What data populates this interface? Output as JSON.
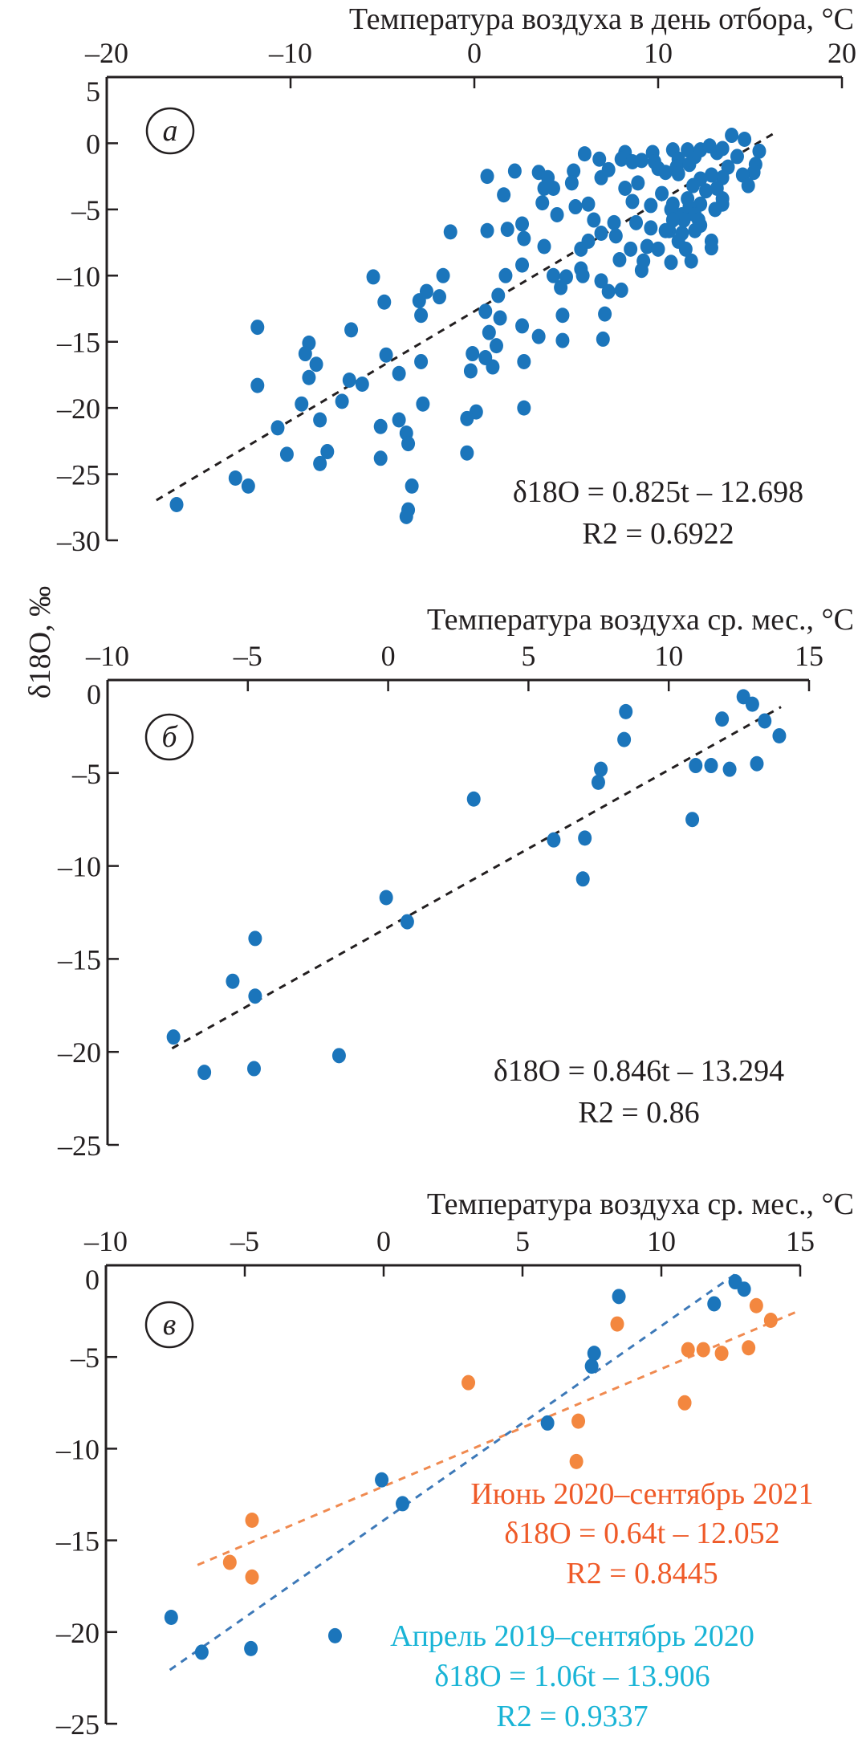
{
  "y_axis_label": "δ18O, ‰",
  "colors": {
    "blue": "#1b75bb",
    "orange": "#f3873f",
    "orange_text": "#ef5a28",
    "cyan_text": "#19b4d6",
    "blue_line": "#3d79b8",
    "orange_line": "#f08a50",
    "black": "#231f20"
  },
  "chart_data": [
    {
      "type": "scatter",
      "panel_label": "а",
      "xlabel": "Температура воздуха в день отбора, °C",
      "ylabel": "δ18O, ‰",
      "xlim": [
        -20,
        20
      ],
      "ylim": [
        -30,
        5
      ],
      "xticks": [
        -20,
        -10,
        0,
        10,
        20
      ],
      "yticks": [
        5,
        0,
        -5,
        -10,
        -15,
        -20,
        -25,
        -30
      ],
      "x_axis_position": "top",
      "grid": false,
      "series": [
        {
          "color": "#1b75bb",
          "points": [
            [
              -11.8,
              -13.9
            ],
            [
              -11.8,
              -18.3
            ],
            [
              -9.0,
              -15.1
            ],
            [
              -9.2,
              -15.9
            ],
            [
              -8.6,
              -16.7
            ],
            [
              -9.0,
              -17.7
            ],
            [
              -9.4,
              -19.7
            ],
            [
              -6.7,
              -14.1
            ],
            [
              -6.8,
              -17.9
            ],
            [
              -6.1,
              -18.2
            ],
            [
              -7.2,
              -19.5
            ],
            [
              -4.8,
              -16.0
            ],
            [
              -4.1,
              -17.4
            ],
            [
              -2.9,
              -16.5
            ],
            [
              -2.8,
              -19.7
            ],
            [
              -5.5,
              -10.1
            ],
            [
              -4.9,
              -12.0
            ],
            [
              -3.0,
              -11.9
            ],
            [
              -2.6,
              -11.2
            ],
            [
              -1.9,
              -11.6
            ],
            [
              -2.9,
              -13.0
            ],
            [
              -1.7,
              -10.0
            ],
            [
              -1.3,
              -6.7
            ],
            [
              -0.2,
              -17.2
            ],
            [
              -0.1,
              -15.9
            ],
            [
              0.6,
              -16.2
            ],
            [
              1.0,
              -16.9
            ],
            [
              0.8,
              -14.3
            ],
            [
              1.2,
              -15.3
            ],
            [
              0.6,
              -12.7
            ],
            [
              1.4,
              -13.2
            ],
            [
              1.3,
              -11.5
            ],
            [
              1.7,
              -10.0
            ],
            [
              2.6,
              -9.2
            ],
            [
              2.6,
              -13.8
            ],
            [
              2.7,
              -16.5
            ],
            [
              2.7,
              -20.0
            ],
            [
              0.1,
              -20.3
            ],
            [
              3.5,
              -14.6
            ],
            [
              4.8,
              -14.9
            ],
            [
              4.8,
              -13.0
            ],
            [
              7.0,
              -14.8
            ],
            [
              7.1,
              -12.9
            ],
            [
              4.3,
              -10.0
            ],
            [
              5.0,
              -10.1
            ],
            [
              4.7,
              -10.9
            ],
            [
              5.8,
              -9.5
            ],
            [
              5.9,
              -10.0
            ],
            [
              6.9,
              -10.4
            ],
            [
              7.3,
              -11.2
            ],
            [
              8.0,
              -11.1
            ],
            [
              3.8,
              -7.8
            ],
            [
              2.7,
              -7.2
            ],
            [
              2.6,
              -6.1
            ],
            [
              1.8,
              -6.5
            ],
            [
              0.7,
              -6.6
            ],
            [
              1.6,
              -3.9
            ],
            [
              0.7,
              -2.5
            ],
            [
              2.2,
              -2.1
            ],
            [
              3.5,
              -2.2
            ],
            [
              4.0,
              -2.6
            ],
            [
              3.8,
              -3.4
            ],
            [
              4.3,
              -3.4
            ],
            [
              3.7,
              -4.5
            ],
            [
              4.5,
              -5.4
            ],
            [
              5.4,
              -2.1
            ],
            [
              5.3,
              -3.0
            ],
            [
              5.5,
              -4.8
            ],
            [
              6.2,
              -4.6
            ],
            [
              6.0,
              -0.8
            ],
            [
              6.8,
              -1.2
            ],
            [
              7.3,
              -2.0
            ],
            [
              6.9,
              -2.6
            ],
            [
              8.2,
              -3.4
            ],
            [
              8.9,
              -3.0
            ],
            [
              8.6,
              -4.4
            ],
            [
              9.6,
              -4.7
            ],
            [
              6.5,
              -5.8
            ],
            [
              6.9,
              -6.8
            ],
            [
              7.6,
              -6.0
            ],
            [
              7.7,
              -7.0
            ],
            [
              5.8,
              -8.0
            ],
            [
              6.2,
              -7.4
            ],
            [
              8.5,
              -8.0
            ],
            [
              7.9,
              -8.8
            ],
            [
              9.4,
              -7.8
            ],
            [
              10.0,
              -8.0
            ],
            [
              9.2,
              -8.9
            ],
            [
              9.1,
              -9.6
            ],
            [
              10.7,
              -9.0
            ],
            [
              11.8,
              -8.9
            ],
            [
              8.8,
              -6.0
            ],
            [
              9.6,
              -6.4
            ],
            [
              10.6,
              -6.6
            ],
            [
              11.3,
              -6.8
            ],
            [
              11.1,
              -7.4
            ],
            [
              11.5,
              -8.0
            ],
            [
              12.3,
              -6.2
            ],
            [
              12.9,
              -7.4
            ],
            [
              12.9,
              -7.9
            ],
            [
              8.2,
              -0.7
            ],
            [
              8.0,
              -1.2
            ],
            [
              8.6,
              -1.4
            ],
            [
              9.1,
              -1.3
            ],
            [
              9.7,
              -0.7
            ],
            [
              9.8,
              -1.4
            ],
            [
              10.0,
              -1.9
            ],
            [
              10.4,
              -2.2
            ],
            [
              10.8,
              -0.5
            ],
            [
              11.1,
              -1.2
            ],
            [
              11.0,
              -1.8
            ],
            [
              11.6,
              -0.5
            ],
            [
              12.0,
              -1.0
            ],
            [
              11.7,
              -1.6
            ],
            [
              11.1,
              -2.3
            ],
            [
              12.3,
              -0.5
            ],
            [
              12.8,
              -0.2
            ],
            [
              13.2,
              -0.7
            ],
            [
              13.5,
              -0.4
            ],
            [
              14.0,
              0.6
            ],
            [
              14.3,
              -1.0
            ],
            [
              14.7,
              0.3
            ],
            [
              15.5,
              -0.6
            ],
            [
              15.3,
              -1.6
            ],
            [
              15.2,
              -2.2
            ],
            [
              14.6,
              -2.4
            ],
            [
              14.9,
              -3.2
            ],
            [
              13.8,
              -1.8
            ],
            [
              13.5,
              -2.6
            ],
            [
              12.9,
              -2.4
            ],
            [
              12.3,
              -2.7
            ],
            [
              11.9,
              -3.2
            ],
            [
              12.6,
              -3.6
            ],
            [
              13.2,
              -3.4
            ],
            [
              13.5,
              -4.2
            ],
            [
              13.5,
              -4.6
            ],
            [
              13.1,
              -5.0
            ],
            [
              12.3,
              -4.6
            ],
            [
              11.7,
              -4.8
            ],
            [
              11.3,
              -5.4
            ],
            [
              10.8,
              -4.6
            ],
            [
              10.2,
              -3.8
            ],
            [
              10.7,
              -5.0
            ],
            [
              11.6,
              -4.2
            ],
            [
              12.0,
              -5.4
            ],
            [
              11.4,
              -5.8
            ],
            [
              12.2,
              -5.8
            ],
            [
              10.8,
              -5.8
            ],
            [
              10.4,
              -6.6
            ],
            [
              12.0,
              -6.6
            ],
            [
              -16.2,
              -27.3
            ],
            [
              -13.0,
              -25.3
            ],
            [
              -12.3,
              -25.9
            ],
            [
              -10.7,
              -21.5
            ],
            [
              -10.2,
              -23.5
            ],
            [
              -8.4,
              -20.9
            ],
            [
              -8.4,
              -24.2
            ],
            [
              -8.0,
              -23.3
            ],
            [
              -5.1,
              -21.4
            ],
            [
              -5.1,
              -23.8
            ],
            [
              -4.1,
              -20.9
            ],
            [
              -3.7,
              -21.9
            ],
            [
              -3.6,
              -22.7
            ],
            [
              -3.4,
              -25.9
            ],
            [
              -3.6,
              -27.7
            ],
            [
              -3.7,
              -28.2
            ],
            [
              -0.4,
              -20.8
            ],
            [
              -0.4,
              -23.4
            ]
          ]
        }
      ],
      "trendlines": [
        {
          "slope": 0.825,
          "intercept": -12.698,
          "x_range": [
            -17.3,
            16.5
          ],
          "color": "#231f20"
        }
      ],
      "annotations": [
        {
          "lines": [
            "δ18O = 0.825t – 12.698",
            "R2 = 0.6922"
          ],
          "color": "#231f20"
        }
      ]
    },
    {
      "type": "scatter",
      "panel_label": "б",
      "xlabel": "Температура воздуха ср. мес., °C",
      "ylabel": "δ18O, ‰",
      "xlim": [
        -10,
        15
      ],
      "ylim": [
        -25,
        0
      ],
      "xticks": [
        -10,
        -5,
        0,
        5,
        10,
        15
      ],
      "yticks": [
        0,
        -5,
        -10,
        -15,
        -20,
        -25
      ],
      "x_axis_position": "top",
      "grid": false,
      "series": [
        {
          "color": "#1b75bb",
          "points": [
            [
              -7.65,
              -19.2
            ],
            [
              -6.55,
              -21.1
            ],
            [
              -5.54,
              -16.2
            ],
            [
              -4.74,
              -13.9
            ],
            [
              -4.74,
              -17.0
            ],
            [
              -4.78,
              -20.9
            ],
            [
              -1.75,
              -20.2
            ],
            [
              -0.07,
              -11.7
            ],
            [
              0.68,
              -13.0
            ],
            [
              3.05,
              -6.4
            ],
            [
              5.9,
              -8.6
            ],
            [
              7.01,
              -8.5
            ],
            [
              6.94,
              -10.7
            ],
            [
              7.49,
              -5.5
            ],
            [
              7.58,
              -4.8
            ],
            [
              8.41,
              -3.2
            ],
            [
              8.47,
              -1.7
            ],
            [
              10.84,
              -7.5
            ],
            [
              10.96,
              -4.6
            ],
            [
              11.51,
              -4.6
            ],
            [
              12.17,
              -4.8
            ],
            [
              11.9,
              -2.1
            ],
            [
              12.66,
              -0.9
            ],
            [
              12.98,
              -1.3
            ],
            [
              13.14,
              -4.5
            ],
            [
              13.42,
              -2.2
            ],
            [
              13.94,
              -3.0
            ]
          ]
        }
      ],
      "trendlines": [
        {
          "slope": 0.846,
          "intercept": -13.294,
          "x_range": [
            -7.7,
            14.0
          ],
          "color": "#231f20"
        }
      ],
      "annotations": [
        {
          "lines": [
            "δ18O = 0.846t – 13.294",
            "R2 = 0.86"
          ],
          "color": "#231f20"
        }
      ]
    },
    {
      "type": "scatter",
      "panel_label": "в",
      "xlabel": "Температура воздуха ср. мес., °C",
      "ylabel": "δ18O, ‰",
      "xlim": [
        -10,
        15
      ],
      "ylim": [
        -25,
        0
      ],
      "xticks": [
        -10,
        -5,
        0,
        5,
        10,
        15
      ],
      "yticks": [
        0,
        -5,
        -10,
        -15,
        -20,
        -25
      ],
      "x_axis_position": "top",
      "grid": false,
      "series": [
        {
          "name": "Июнь 2020–сентябрь 2021",
          "color": "#f3873f",
          "points": [
            [
              -5.54,
              -16.2
            ],
            [
              -4.74,
              -13.9
            ],
            [
              -4.74,
              -17.0
            ],
            [
              3.05,
              -6.4
            ],
            [
              7.01,
              -8.5
            ],
            [
              6.94,
              -10.7
            ],
            [
              8.41,
              -3.2
            ],
            [
              10.84,
              -7.5
            ],
            [
              10.96,
              -4.6
            ],
            [
              11.51,
              -4.6
            ],
            [
              12.17,
              -4.8
            ],
            [
              13.14,
              -4.5
            ],
            [
              13.42,
              -2.2
            ],
            [
              13.94,
              -3.0
            ]
          ]
        },
        {
          "name": "Апрель 2019–сентябрь 2020",
          "color": "#1b75bb",
          "points": [
            [
              -7.65,
              -19.2
            ],
            [
              -6.55,
              -21.1
            ],
            [
              -4.78,
              -20.9
            ],
            [
              -1.75,
              -20.2
            ],
            [
              -0.07,
              -11.7
            ],
            [
              0.68,
              -13.0
            ],
            [
              5.9,
              -8.6
            ],
            [
              7.49,
              -5.5
            ],
            [
              7.58,
              -4.8
            ],
            [
              8.47,
              -1.7
            ],
            [
              11.9,
              -2.1
            ],
            [
              12.66,
              -0.9
            ],
            [
              12.98,
              -1.3
            ]
          ]
        }
      ],
      "trendlines": [
        {
          "slope": 0.64,
          "intercept": -12.052,
          "x_range": [
            -6.7,
            15.0
          ],
          "color": "#f08a50"
        },
        {
          "slope": 1.06,
          "intercept": -13.906,
          "x_range": [
            -7.7,
            12.8
          ],
          "color": "#3d79b8"
        }
      ],
      "annotations": [
        {
          "lines": [
            "Июнь 2020–сентябрь 2021",
            "δ18O = 0.64t – 12.052",
            "R2 = 0.8445"
          ],
          "color": "#ef5a28"
        },
        {
          "lines": [
            "Апрель 2019–сентябрь 2020",
            "δ18O = 1.06t – 13.906",
            "R2 = 0.9337"
          ],
          "color": "#19b4d6"
        }
      ]
    }
  ]
}
